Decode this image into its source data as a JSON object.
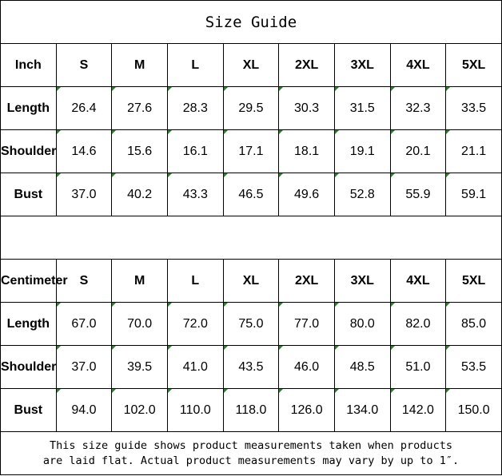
{
  "title": "Size Guide",
  "sizes": [
    "S",
    "M",
    "L",
    "XL",
    "2XL",
    "3XL",
    "4XL",
    "5XL"
  ],
  "tables": [
    {
      "unit": "Inch",
      "rows": [
        {
          "label": "Length",
          "values": [
            "26.4",
            "27.6",
            "28.3",
            "29.5",
            "30.3",
            "31.5",
            "32.3",
            "33.5"
          ]
        },
        {
          "label": "Shoulder",
          "values": [
            "14.6",
            "15.6",
            "16.1",
            "17.1",
            "18.1",
            "19.1",
            "20.1",
            "21.1"
          ]
        },
        {
          "label": "Bust",
          "values": [
            "37.0",
            "40.2",
            "43.3",
            "46.5",
            "49.6",
            "52.8",
            "55.9",
            "59.1"
          ]
        }
      ]
    },
    {
      "unit": "Centimeter",
      "rows": [
        {
          "label": "Length",
          "values": [
            "67.0",
            "70.0",
            "72.0",
            "75.0",
            "77.0",
            "80.0",
            "82.0",
            "85.0"
          ]
        },
        {
          "label": "Shoulder",
          "values": [
            "37.0",
            "39.5",
            "41.0",
            "43.5",
            "46.0",
            "48.5",
            "51.0",
            "53.5"
          ]
        },
        {
          "label": "Bust",
          "values": [
            "94.0",
            "102.0",
            "110.0",
            "118.0",
            "126.0",
            "134.0",
            "142.0",
            "150.0"
          ]
        }
      ]
    }
  ],
  "footer": {
    "line1": "This size guide shows product measurements taken when products",
    "line2": "are laid flat. Actual product measurements may vary by up to 1″."
  },
  "colors": {
    "error_indicator": "#1a8a1a",
    "border": "#000000"
  }
}
